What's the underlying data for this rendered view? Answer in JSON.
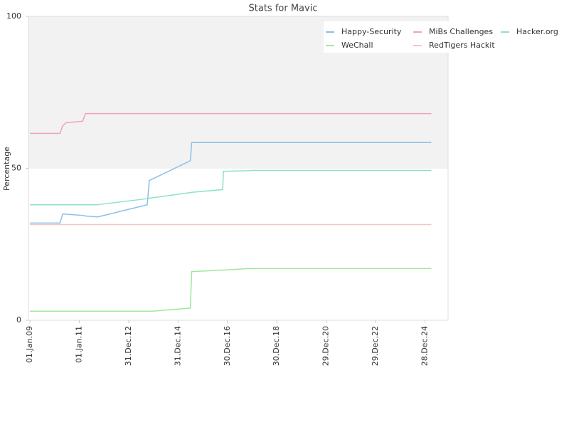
{
  "chart_data": {
    "type": "line",
    "title": "Stats for Mavic",
    "y_label": "Percentage",
    "x": [
      "2009-01-01",
      "2010-03-20",
      "2010-05-01",
      "2010-06-20",
      "2011-02-20",
      "2011-04-01",
      "2011-10-01",
      "2011-10-20",
      "2013-10-01",
      "2013-11-01",
      "2013-12-20",
      "2015-07-01",
      "2015-07-20",
      "2016-10-20",
      "2016-11-01",
      "2017-11-15",
      "2017-12-20",
      "2025-04-01"
    ],
    "series": [
      {
        "name": "Happy-Security",
        "color": "#8cbfe6",
        "values": [
          32,
          32,
          35,
          34.9,
          34.5,
          34.3,
          34,
          34.1,
          38,
          46,
          46.5,
          52.5,
          58.5,
          58.5,
          58.5,
          58.5,
          58.5,
          58.5
        ]
      },
      {
        "name": "MiBs Challenges",
        "color": "#f2a0c0",
        "values": [
          61.5,
          61.5,
          64,
          65,
          65.5,
          68,
          68,
          68,
          68,
          68,
          68,
          68,
          68,
          68,
          68,
          68,
          68,
          68
        ]
      },
      {
        "name": "Hacker.org",
        "color": "#8ee0cc",
        "values": [
          38,
          38,
          38,
          38,
          38,
          38,
          38,
          38.1,
          40,
          40.2,
          40.3,
          42,
          42.1,
          43,
          49,
          49.2,
          49.3,
          49.3
        ]
      },
      {
        "name": "WeChall",
        "color": "#9ee89e",
        "values": [
          3,
          3,
          3,
          3,
          3,
          3,
          3,
          3,
          3,
          3,
          3,
          4,
          16,
          16.5,
          16.5,
          17,
          17,
          17
        ]
      },
      {
        "name": "RedTigers Hackit",
        "color": "#f6c4c4",
        "values": [
          31.5,
          31.5,
          31.5,
          31.5,
          31.5,
          31.5,
          31.5,
          31.5,
          31.5,
          31.5,
          31.5,
          31.5,
          31.5,
          31.5,
          31.5,
          31.5,
          31.5,
          31.5
        ]
      }
    ],
    "xlim": [
      "2008-12-10",
      "2025-12-05"
    ],
    "xticks": [
      {
        "value": "2009-01-01",
        "label": "01.Jan.09"
      },
      {
        "value": "2011-01-01",
        "label": "01.Jan.11"
      },
      {
        "value": "2012-12-31",
        "label": "31.Dec.12"
      },
      {
        "value": "2014-12-31",
        "label": "31.Dec.14"
      },
      {
        "value": "2016-12-30",
        "label": "30.Dec.16"
      },
      {
        "value": "2018-12-30",
        "label": "30.Dec.18"
      },
      {
        "value": "2020-12-29",
        "label": "29.Dec.20"
      },
      {
        "value": "2022-12-29",
        "label": "29.Dec.22"
      },
      {
        "value": "2024-12-28",
        "label": "28.Dec.24"
      }
    ],
    "ylim": [
      0,
      100
    ],
    "yticks": [
      0,
      50,
      100
    ],
    "shaded_range": [
      50,
      100
    ],
    "legend": "top-right"
  }
}
